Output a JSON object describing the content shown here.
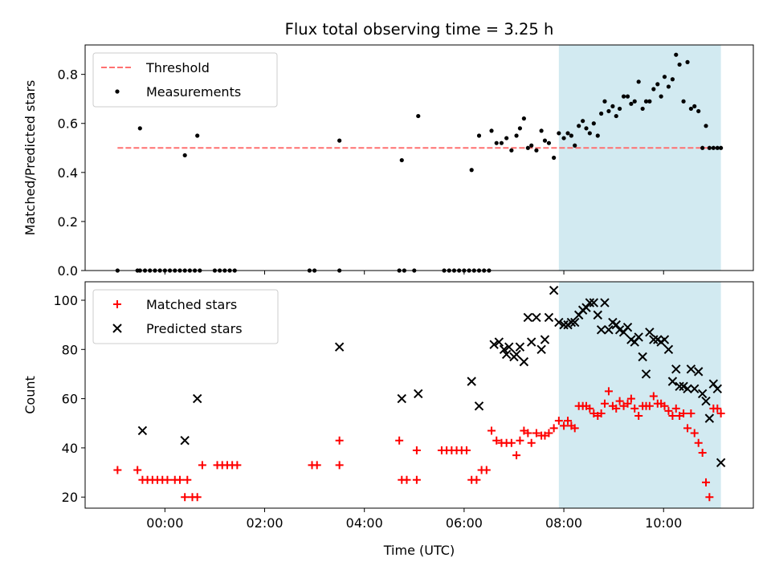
{
  "chart_data": [
    {
      "type": "scatter",
      "title": "Flux total observing time = 3.25 h",
      "xlabel": "",
      "ylabel": "Matched/Predicted stars",
      "xlim": [
        -1.6,
        11.8
      ],
      "ylim": [
        0.0,
        0.92
      ],
      "yticks": [
        0.0,
        0.2,
        0.4,
        0.6,
        0.8
      ],
      "ytick_labels": [
        "0.0",
        "0.2",
        "0.4",
        "0.6",
        "0.8"
      ],
      "shaded_region_x": [
        7.9,
        11.15
      ],
      "shaded_color": "#add8e6",
      "legend": {
        "placement": "upper-left",
        "entries": [
          {
            "label": "Threshold",
            "marker": "dashed-line",
            "color": "#ff7070"
          },
          {
            "label": "Measurements",
            "marker": "dot",
            "color": "#000000"
          }
        ]
      },
      "series": [
        {
          "name": "Threshold",
          "style": "dashed",
          "color": "#ff7070",
          "x": [
            -0.95,
            11.1
          ],
          "y": [
            0.5,
            0.5
          ]
        },
        {
          "name": "Measurements",
          "style": "dot",
          "color": "#000000",
          "x": [
            -0.95,
            -0.55,
            -0.5,
            -0.4,
            -0.3,
            -0.2,
            -0.1,
            0.0,
            0.1,
            0.2,
            0.3,
            0.4,
            0.5,
            0.6,
            0.7,
            1.0,
            1.1,
            1.2,
            1.3,
            1.4,
            2.9,
            3.0,
            3.5,
            4.7,
            4.8,
            5.0,
            5.6,
            5.7,
            5.8,
            5.9,
            6.0,
            6.1,
            6.2,
            6.3,
            6.4,
            6.5,
            -0.5,
            0.4,
            0.65,
            3.5,
            4.75,
            5.08,
            6.15,
            6.3,
            6.55,
            6.65,
            6.75,
            6.85,
            6.95,
            7.05,
            7.12,
            7.2,
            7.28,
            7.35,
            7.45,
            7.55,
            7.62,
            7.7,
            7.8,
            7.9,
            8.0,
            8.08,
            8.15,
            8.22,
            8.3,
            8.38,
            8.45,
            8.52,
            8.6,
            8.68,
            8.75,
            8.82,
            8.9,
            8.98,
            9.05,
            9.12,
            9.2,
            9.28,
            9.35,
            9.42,
            9.5,
            9.58,
            9.65,
            9.72,
            9.8,
            9.88,
            9.95,
            10.02,
            10.1,
            10.18,
            10.25,
            10.32,
            10.4,
            10.48,
            10.55,
            10.62,
            10.7,
            10.78,
            10.85,
            10.92,
            11.0,
            11.08,
            11.15
          ],
          "y": [
            0,
            0,
            0,
            0,
            0,
            0,
            0,
            0,
            0,
            0,
            0,
            0,
            0,
            0,
            0,
            0,
            0,
            0,
            0,
            0,
            0,
            0,
            0,
            0,
            0,
            0,
            0,
            0,
            0,
            0,
            0,
            0,
            0,
            0,
            0,
            0,
            0.58,
            0.47,
            0.55,
            0.53,
            0.45,
            0.63,
            0.41,
            0.55,
            0.57,
            0.52,
            0.52,
            0.54,
            0.49,
            0.55,
            0.58,
            0.62,
            0.5,
            0.51,
            0.49,
            0.57,
            0.53,
            0.52,
            0.46,
            0.56,
            0.54,
            0.56,
            0.55,
            0.51,
            0.59,
            0.61,
            0.58,
            0.56,
            0.6,
            0.55,
            0.64,
            0.69,
            0.65,
            0.67,
            0.63,
            0.66,
            0.71,
            0.71,
            0.68,
            0.69,
            0.77,
            0.66,
            0.69,
            0.69,
            0.74,
            0.76,
            0.71,
            0.79,
            0.75,
            0.78,
            0.88,
            0.84,
            0.69,
            0.85,
            0.66,
            0.67,
            0.65,
            0.5,
            0.59,
            0.5,
            0.5,
            0.5,
            0.5
          ]
        }
      ]
    },
    {
      "type": "scatter",
      "title": "",
      "xlabel": "Time (UTC)",
      "ylabel": "Count",
      "xlim": [
        -1.6,
        11.8
      ],
      "ylim": [
        15.5,
        107.5
      ],
      "xticks": [
        0,
        2,
        4,
        6,
        8,
        10
      ],
      "xtick_labels": [
        "00:00",
        "02:00",
        "04:00",
        "06:00",
        "08:00",
        "10:00"
      ],
      "yticks": [
        20,
        40,
        60,
        80,
        100
      ],
      "ytick_labels": [
        "20",
        "40",
        "60",
        "80",
        "100"
      ],
      "shaded_region_x": [
        7.9,
        11.15
      ],
      "shaded_color": "#add8e6",
      "legend": {
        "placement": "upper-left",
        "entries": [
          {
            "label": "Matched stars",
            "marker": "plus",
            "color": "#ff0000"
          },
          {
            "label": "Predicted stars",
            "marker": "x",
            "color": "#000000"
          }
        ]
      },
      "series": [
        {
          "name": "Matched stars",
          "style": "plus",
          "color": "#ff0000",
          "x": [
            -0.95,
            -0.55,
            -0.45,
            -0.35,
            -0.25,
            -0.15,
            -0.05,
            0.05,
            0.2,
            0.3,
            0.4,
            0.45,
            0.55,
            0.65,
            0.75,
            1.05,
            1.15,
            1.25,
            1.35,
            1.45,
            2.95,
            3.05,
            3.5,
            3.5,
            4.7,
            4.75,
            4.85,
            5.05,
            5.05,
            5.55,
            5.65,
            5.75,
            5.85,
            5.95,
            6.05,
            6.15,
            6.25,
            6.35,
            6.45,
            6.55,
            6.65,
            6.75,
            6.85,
            6.95,
            7.05,
            7.12,
            7.2,
            7.28,
            7.35,
            7.45,
            7.55,
            7.62,
            7.7,
            7.8,
            7.9,
            8.0,
            8.08,
            8.15,
            8.22,
            8.3,
            8.38,
            8.45,
            8.52,
            8.6,
            8.68,
            8.75,
            8.82,
            8.9,
            8.98,
            9.05,
            9.12,
            9.2,
            9.28,
            9.35,
            9.42,
            9.5,
            9.58,
            9.65,
            9.72,
            9.8,
            9.88,
            9.95,
            10.02,
            10.1,
            10.18,
            10.25,
            10.32,
            10.4,
            10.48,
            10.55,
            10.62,
            10.7,
            10.78,
            10.85,
            10.92,
            11.0,
            11.08,
            11.15
          ],
          "y": [
            31,
            31,
            27,
            27,
            27,
            27,
            27,
            27,
            27,
            27,
            20,
            27,
            20,
            20,
            33,
            33,
            33,
            33,
            33,
            33,
            33,
            33,
            43,
            33,
            43,
            27,
            27,
            27,
            39,
            39,
            39,
            39,
            39,
            39,
            39,
            27,
            27,
            31,
            31,
            47,
            43,
            42,
            42,
            42,
            37,
            43,
            47,
            46,
            42,
            46,
            45,
            45,
            46,
            48,
            51,
            49,
            51,
            49,
            48,
            57,
            57,
            57,
            56,
            54,
            53,
            54,
            58,
            63,
            57,
            56,
            59,
            57,
            58,
            60,
            56,
            53,
            57,
            57,
            57,
            61,
            58,
            58,
            57,
            55,
            53,
            56,
            53,
            54,
            48,
            54,
            46,
            42,
            38,
            26,
            20,
            56,
            56,
            54
          ]
        },
        {
          "name": "Predicted stars",
          "style": "x",
          "color": "#000000",
          "x": [
            -0.45,
            0.4,
            0.65,
            3.5,
            4.75,
            5.08,
            6.15,
            6.3,
            6.6,
            6.7,
            6.8,
            6.85,
            6.9,
            7.0,
            7.05,
            7.12,
            7.2,
            7.28,
            7.35,
            7.45,
            7.55,
            7.62,
            7.7,
            7.8,
            7.9,
            8.0,
            8.08,
            8.15,
            8.22,
            8.3,
            8.38,
            8.45,
            8.52,
            8.6,
            8.68,
            8.75,
            8.82,
            8.9,
            8.98,
            9.05,
            9.12,
            9.2,
            9.28,
            9.35,
            9.42,
            9.5,
            9.58,
            9.65,
            9.72,
            9.8,
            9.88,
            9.95,
            10.02,
            10.1,
            10.18,
            10.25,
            10.32,
            10.4,
            10.48,
            10.55,
            10.62,
            10.7,
            10.78,
            10.85,
            10.92,
            11.0,
            11.08,
            11.15
          ],
          "y": [
            47,
            43,
            60,
            81,
            60,
            62,
            67,
            57,
            82,
            83,
            80,
            78,
            81,
            77,
            78,
            81,
            75,
            93,
            83,
            93,
            80,
            84,
            93,
            104,
            91,
            90,
            90,
            91,
            91,
            94,
            96,
            97,
            99,
            99,
            94,
            88,
            99,
            88,
            91,
            90,
            88,
            87,
            89,
            84,
            83,
            85,
            77,
            70,
            87,
            84,
            84,
            83,
            84,
            80,
            67,
            72,
            65,
            65,
            64,
            72,
            64,
            71,
            62,
            59,
            52,
            66,
            64,
            34
          ]
        }
      ]
    }
  ]
}
